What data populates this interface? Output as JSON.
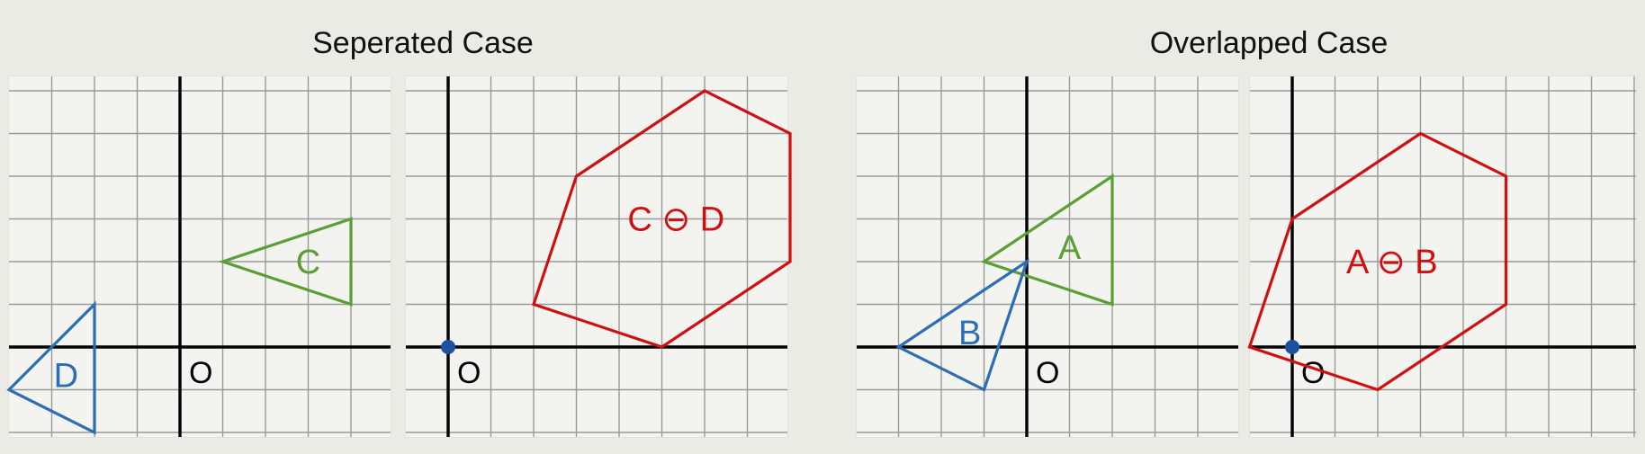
{
  "sections": [
    {
      "title": "Seperated Case"
    },
    {
      "title": "Overlapped Case"
    }
  ],
  "colors": {
    "green": "#5a9e36",
    "blue": "#2c6db5",
    "red": "#d01010",
    "axis": "#000000",
    "grid": "#9a9a9a",
    "origin_dot": "#1f4fa0"
  },
  "panels": {
    "sep_left": {
      "origin_label": "O",
      "shapes": [
        {
          "name": "triangle-c",
          "label": "C",
          "color": "green",
          "vertices": [
            [
              1,
              2
            ],
            [
              4,
              3
            ],
            [
              4,
              1
            ]
          ]
        },
        {
          "name": "triangle-d",
          "label": "D",
          "color": "blue",
          "vertices": [
            [
              -4,
              -1
            ],
            [
              -2,
              1
            ],
            [
              -2,
              -2
            ]
          ]
        }
      ]
    },
    "sep_right": {
      "origin_label": "O",
      "shapes": [
        {
          "name": "hexagon-c-minus-d",
          "label": "C ⊖ D",
          "color": "red",
          "vertices": [
            [
              3,
              4
            ],
            [
              6,
              6
            ],
            [
              8,
              5
            ],
            [
              8,
              2
            ],
            [
              5,
              0
            ],
            [
              2,
              1
            ]
          ]
        }
      ]
    },
    "ovl_left": {
      "origin_label": "O",
      "shapes": [
        {
          "name": "triangle-a",
          "label": "A",
          "color": "green",
          "vertices": [
            [
              -1,
              2
            ],
            [
              2,
              4
            ],
            [
              2,
              1
            ]
          ]
        },
        {
          "name": "triangle-b",
          "label": "B",
          "color": "blue",
          "vertices": [
            [
              -3,
              0
            ],
            [
              0,
              2
            ],
            [
              -1,
              -1
            ]
          ]
        }
      ]
    },
    "ovl_right": {
      "origin_label": "O",
      "shapes": [
        {
          "name": "hexagon-a-minus-b",
          "label": "A ⊖ B",
          "color": "red",
          "vertices": [
            [
              0,
              3
            ],
            [
              3,
              5
            ],
            [
              5,
              4
            ],
            [
              5,
              1
            ],
            [
              2,
              -1
            ],
            [
              -1,
              0
            ]
          ]
        }
      ]
    }
  }
}
